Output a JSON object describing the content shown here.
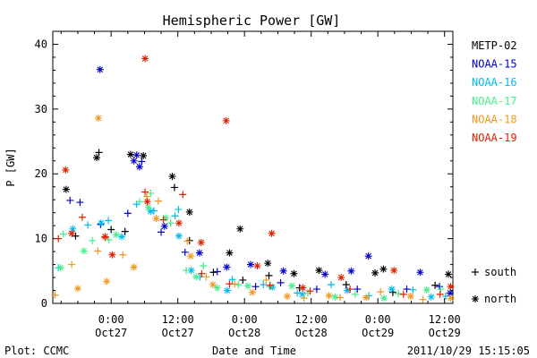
{
  "chart_data": {
    "type": "scatter",
    "title": "Hemispheric Power [GW]",
    "xlabel": "Date and Time",
    "ylabel": "P [GW]",
    "x_unit": "hours relative to 2011-10-27 00:00 UT",
    "xlim": [
      -10.5,
      61.5
    ],
    "ylim": [
      0,
      42
    ],
    "yticks": [
      0,
      10,
      20,
      30,
      40
    ],
    "xticks": [
      {
        "x": 0,
        "time": "0:00",
        "date": "Oct27"
      },
      {
        "x": 12,
        "time": "12:00",
        "date": "Oct27"
      },
      {
        "x": 24,
        "time": "0:00",
        "date": "Oct28"
      },
      {
        "x": 36,
        "time": "12:00",
        "date": "Oct28"
      },
      {
        "x": 48,
        "time": "0:00",
        "date": "Oct29"
      },
      {
        "x": 60,
        "time": "12:00",
        "date": "Oct29"
      }
    ],
    "grid": false,
    "legend_position": "right",
    "markers": [
      {
        "symbol": "+",
        "label": "south"
      },
      {
        "symbol": "*",
        "label": "north"
      }
    ],
    "series": [
      {
        "name": "METP-02",
        "color": "#000000",
        "south": [
          [
            -2.2,
            23.3
          ],
          [
            -6.4,
            10.4
          ],
          [
            0.0,
            11.4
          ],
          [
            2.5,
            11.1
          ],
          [
            11.4,
            17.9
          ],
          [
            14.1,
            9.7
          ],
          [
            18.4,
            4.8
          ],
          [
            23.7,
            3.6
          ],
          [
            28.4,
            4.3
          ],
          [
            33.9,
            2.4
          ],
          [
            42.3,
            2.9
          ],
          [
            50.7,
            1.7
          ],
          [
            58.3,
            2.8
          ]
        ],
        "north": [
          [
            -8.1,
            17.6
          ],
          [
            -2.6,
            22.5
          ],
          [
            3.5,
            23.0
          ],
          [
            5.8,
            22.8
          ],
          [
            11.0,
            19.6
          ],
          [
            14.1,
            14.1
          ],
          [
            21.3,
            7.8
          ],
          [
            23.2,
            11.5
          ],
          [
            28.2,
            6.2
          ],
          [
            32.9,
            4.6
          ],
          [
            37.4,
            5.1
          ],
          [
            47.5,
            4.7
          ],
          [
            49.0,
            5.3
          ],
          [
            60.7,
            4.5
          ]
        ]
      },
      {
        "name": "NOAA-15",
        "color": "#0000cc",
        "south": [
          [
            -7.4,
            15.9
          ],
          [
            -5.6,
            15.6
          ],
          [
            -1.9,
            12.2
          ],
          [
            3.0,
            13.9
          ],
          [
            5.5,
            21.9
          ],
          [
            9.0,
            11.0
          ],
          [
            13.3,
            7.9
          ],
          [
            19.1,
            4.9
          ],
          [
            26.0,
            2.6
          ],
          [
            30.5,
            3.2
          ],
          [
            37.0,
            2.2
          ],
          [
            44.3,
            2.2
          ],
          [
            53.2,
            2.2
          ],
          [
            59.1,
            2.6
          ]
        ],
        "north": [
          [
            -2.0,
            36.1
          ],
          [
            4.1,
            22.0
          ],
          [
            4.6,
            22.9
          ],
          [
            5.1,
            21.1
          ],
          [
            9.6,
            11.9
          ],
          [
            15.9,
            7.8
          ],
          [
            20.8,
            5.6
          ],
          [
            25.1,
            6.0
          ],
          [
            31.0,
            5.0
          ],
          [
            38.5,
            4.5
          ],
          [
            43.2,
            5.0
          ],
          [
            46.3,
            7.3
          ],
          [
            55.6,
            4.8
          ],
          [
            61.0,
            1.6
          ]
        ]
      },
      {
        "name": "NOAA-16",
        "color": "#00bbee",
        "south": [
          [
            -9.5,
            5.5
          ],
          [
            -4.2,
            12.1
          ],
          [
            -0.5,
            12.8
          ],
          [
            4.6,
            15.3
          ],
          [
            7.7,
            14.3
          ],
          [
            11.5,
            13.5
          ],
          [
            12.1,
            14.5
          ],
          [
            16.0,
            4.1
          ],
          [
            21.8,
            3.7
          ],
          [
            27.4,
            2.9
          ],
          [
            33.5,
            1.6
          ],
          [
            39.6,
            2.9
          ],
          [
            46.4,
            1.2
          ],
          [
            54.3,
            2.1
          ],
          [
            60.2,
            1.1
          ]
        ],
        "north": [
          [
            -6.9,
            11.5
          ],
          [
            -1.8,
            12.4
          ],
          [
            1.9,
            10.3
          ],
          [
            7.1,
            14.2
          ],
          [
            12.2,
            10.4
          ],
          [
            14.4,
            5.1
          ],
          [
            20.9,
            2.0
          ],
          [
            29.0,
            2.5
          ],
          [
            34.4,
            1.4
          ],
          [
            42.5,
            2.0
          ],
          [
            50.5,
            2.2
          ],
          [
            57.6,
            1.0
          ]
        ]
      },
      {
        "name": "NOAA-17",
        "color": "#44ee88",
        "south": [
          [
            -8.6,
            10.7
          ],
          [
            -3.4,
            9.7
          ],
          [
            -0.4,
            9.8
          ],
          [
            5.1,
            15.7
          ],
          [
            7.1,
            17.0
          ],
          [
            10.7,
            12.4
          ],
          [
            13.5,
            5.1
          ],
          [
            16.6,
            5.8
          ],
          [
            22.9,
            2.9
          ],
          [
            28.5,
            2.6
          ],
          [
            35.4,
            1.6
          ],
          [
            43.9,
            1.4
          ],
          [
            51.7,
            1.5
          ],
          [
            59.3,
            2.2
          ]
        ],
        "north": [
          [
            -9.1,
            5.5
          ],
          [
            -4.9,
            8.1
          ],
          [
            0.9,
            10.6
          ],
          [
            6.7,
            14.8
          ],
          [
            9.8,
            13.2
          ],
          [
            15.3,
            4.1
          ],
          [
            19.1,
            2.4
          ],
          [
            24.6,
            2.7
          ],
          [
            32.5,
            2.7
          ],
          [
            40.3,
            1.0
          ],
          [
            49.1,
            0.8
          ],
          [
            56.8,
            2.1
          ]
        ]
      },
      {
        "name": "NOAA-18",
        "color": "#ee9922",
        "south": [
          [
            -10.1,
            1.3
          ],
          [
            -7.1,
            6.0
          ],
          [
            -2.4,
            8.1
          ],
          [
            2.1,
            7.5
          ],
          [
            6.4,
            16.5
          ],
          [
            8.5,
            15.8
          ],
          [
            13.7,
            9.6
          ],
          [
            17.1,
            4.1
          ],
          [
            22.2,
            3.0
          ],
          [
            27.9,
            3.6
          ],
          [
            34.7,
            0.8
          ],
          [
            41.2,
            0.9
          ],
          [
            48.5,
            1.8
          ],
          [
            56.1,
            0.6
          ]
        ],
        "north": [
          [
            -6.0,
            2.3
          ],
          [
            -2.3,
            28.6
          ],
          [
            -0.8,
            3.4
          ],
          [
            4.1,
            5.6
          ],
          [
            8.1,
            13.1
          ],
          [
            14.3,
            7.3
          ],
          [
            18.3,
            2.9
          ],
          [
            25.4,
            1.7
          ],
          [
            31.7,
            1.1
          ],
          [
            39.2,
            1.2
          ],
          [
            45.9,
            0.9
          ],
          [
            53.9,
            1.1
          ],
          [
            61.1,
            0.8
          ]
        ]
      },
      {
        "name": "NOAA-19",
        "color": "#dd2200",
        "south": [
          [
            -9.5,
            10.0
          ],
          [
            -5.2,
            13.3
          ],
          [
            -1.1,
            10.2
          ],
          [
            6.1,
            17.2
          ],
          [
            9.4,
            12.9
          ],
          [
            12.9,
            16.8
          ],
          [
            16.3,
            4.6
          ],
          [
            21.3,
            3.0
          ],
          [
            28.6,
            2.8
          ],
          [
            35.8,
            1.9
          ],
          [
            43.0,
            2.2
          ],
          [
            52.6,
            1.4
          ],
          [
            59.2,
            1.4
          ]
        ],
        "north": [
          [
            -8.2,
            20.6
          ],
          [
            -7.1,
            10.8
          ],
          [
            -1.1,
            10.3
          ],
          [
            0.2,
            7.5
          ],
          [
            6.1,
            37.8
          ],
          [
            6.5,
            15.7
          ],
          [
            12.2,
            12.4
          ],
          [
            16.2,
            9.4
          ],
          [
            20.7,
            28.2
          ],
          [
            26.3,
            5.8
          ],
          [
            28.9,
            10.8
          ],
          [
            34.5,
            2.4
          ],
          [
            41.4,
            4.0
          ],
          [
            50.9,
            5.1
          ],
          [
            61.1,
            2.6
          ]
        ]
      }
    ]
  },
  "footer": {
    "plot_credit": "Plot: CCMC",
    "axis_title": "Date and Time",
    "timestamp": "2011/10/29 15:15:05"
  }
}
